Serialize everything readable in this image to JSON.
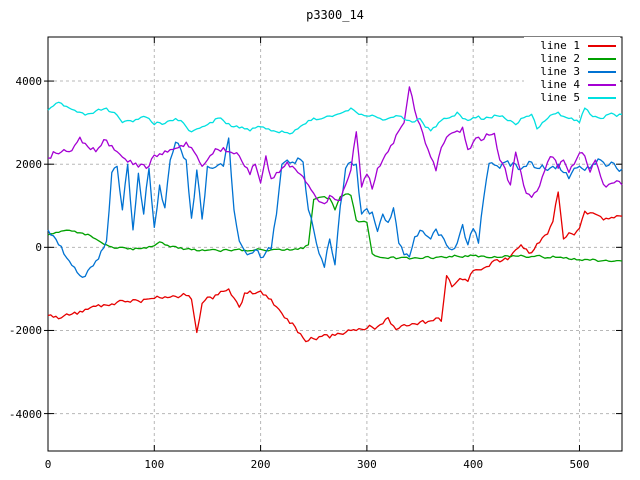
{
  "title": "p3300_14",
  "legend": {
    "items": [
      {
        "label": "line 1",
        "color": "#e60000"
      },
      {
        "label": "line 2",
        "color": "#00a000"
      },
      {
        "label": "line 3",
        "color": "#0072d2"
      },
      {
        "label": "line 4",
        "color": "#a400d3"
      },
      {
        "label": "line 5",
        "color": "#00e0e0"
      }
    ],
    "position": "top-right"
  },
  "axes": {
    "x_ticks": [
      0,
      100,
      200,
      300,
      400,
      500
    ],
    "x_tick_labels": [
      "0",
      "100",
      "200",
      "300",
      "400",
      "500"
    ],
    "y_ticks": [
      -4000,
      -2000,
      0,
      2000,
      4000
    ],
    "y_tick_labels": [
      "-4000",
      "-2000",
      "0",
      "2000",
      "4000"
    ],
    "grid_color": "#b8b8b8",
    "border_color": "#000000"
  },
  "chart_data": {
    "type": "line",
    "title": "p3300_14",
    "xlabel": "",
    "ylabel": "",
    "xlim": [
      0,
      540
    ],
    "ylim": [
      -4900,
      5060
    ],
    "grid": true,
    "legend_position": "top-right",
    "x_start": 0,
    "x_step": 5,
    "series": [
      {
        "name": "line 1",
        "color": "#e60000",
        "values": [
          -1640,
          -1680,
          -1720,
          -1650,
          -1630,
          -1560,
          -1540,
          -1490,
          -1450,
          -1420,
          -1430,
          -1390,
          -1360,
          -1320,
          -1280,
          -1300,
          -1260,
          -1290,
          -1250,
          -1240,
          -1230,
          -1210,
          -1190,
          -1200,
          -1180,
          -1170,
          -1160,
          -1250,
          -2050,
          -1350,
          -1200,
          -1240,
          -1140,
          -1060,
          -1000,
          -1220,
          -1440,
          -1100,
          -1050,
          -1110,
          -1050,
          -1150,
          -1250,
          -1430,
          -1590,
          -1720,
          -1820,
          -2050,
          -2180,
          -2250,
          -2200,
          -2150,
          -2100,
          -2180,
          -2120,
          -2080,
          -2050,
          -2000,
          -2000,
          -1970,
          -1950,
          -1920,
          -1910,
          -1840,
          -1690,
          -1890,
          -1950,
          -1860,
          -1880,
          -1840,
          -1800,
          -1830,
          -1770,
          -1700,
          -1780,
          -680,
          -950,
          -820,
          -780,
          -820,
          -560,
          -540,
          -500,
          -460,
          -310,
          -350,
          -260,
          -220,
          -60,
          60,
          -40,
          -130,
          90,
          230,
          320,
          620,
          1330,
          200,
          350,
          300,
          460,
          870,
          830,
          800,
          740,
          700,
          720,
          760,
          750
        ]
      },
      {
        "name": "line 2",
        "color": "#00a000",
        "values": [
          300,
          330,
          360,
          400,
          410,
          390,
          350,
          300,
          280,
          200,
          120,
          60,
          10,
          -20,
          0,
          -40,
          -60,
          -30,
          -10,
          20,
          40,
          130,
          60,
          10,
          20,
          -10,
          -40,
          -60,
          -80,
          -60,
          -70,
          -50,
          -80,
          -60,
          -70,
          -60,
          -40,
          -70,
          -80,
          -60,
          -50,
          -80,
          -60,
          -50,
          -70,
          -40,
          -60,
          -50,
          -30,
          60,
          1150,
          1200,
          1220,
          1180,
          900,
          1220,
          1280,
          1250,
          650,
          620,
          600,
          -150,
          -220,
          -250,
          -270,
          -230,
          -260,
          -240,
          -280,
          -250,
          -270,
          -230,
          -260,
          -240,
          -220,
          -250,
          -230,
          -210,
          -240,
          -220,
          -200,
          -230,
          -210,
          -250,
          -220,
          -240,
          -200,
          -230,
          -210,
          -190,
          -240,
          -220,
          -200,
          -230,
          -250,
          -210,
          -240,
          -260,
          -280,
          -270,
          -300,
          -290,
          -310,
          -300,
          -330,
          -310,
          -340,
          -320,
          -330
        ]
      },
      {
        "name": "line 3",
        "color": "#0072d2",
        "values": [
          420,
          280,
          60,
          -160,
          -330,
          -480,
          -680,
          -700,
          -480,
          -330,
          -90,
          150,
          1800,
          1950,
          900,
          2000,
          420,
          1780,
          800,
          1900,
          480,
          1500,
          950,
          2100,
          2530,
          2350,
          2100,
          700,
          1860,
          680,
          1950,
          1900,
          1980,
          1950,
          2630,
          900,
          150,
          -80,
          -150,
          -60,
          -250,
          -120,
          -40,
          800,
          2000,
          2100,
          2050,
          2150,
          2050,
          900,
          420,
          -150,
          -480,
          200,
          -420,
          1000,
          1900,
          2050,
          2000,
          800,
          930,
          850,
          380,
          800,
          600,
          950,
          100,
          -180,
          -230,
          250,
          410,
          300,
          200,
          440,
          300,
          50,
          -60,
          100,
          550,
          60,
          450,
          100,
          1200,
          2020,
          1980,
          1900,
          2050,
          1950,
          2000,
          1880,
          1950,
          2050,
          1900,
          1980,
          1850,
          1950,
          2000,
          1800,
          1650,
          1900,
          1950,
          1850,
          1900,
          2000,
          2100,
          1950,
          2050,
          1900,
          1880
        ]
      },
      {
        "name": "line 4",
        "color": "#a400d3",
        "values": [
          2150,
          2300,
          2250,
          2350,
          2300,
          2450,
          2650,
          2500,
          2350,
          2300,
          2450,
          2580,
          2450,
          2300,
          2170,
          2050,
          1990,
          1930,
          1990,
          1950,
          2220,
          2250,
          2320,
          2350,
          2380,
          2450,
          2530,
          2400,
          2200,
          1950,
          2100,
          2250,
          2350,
          2400,
          2300,
          2250,
          2200,
          1950,
          1750,
          2000,
          1550,
          2200,
          1650,
          1800,
          1900,
          2050,
          1950,
          1800,
          1700,
          1500,
          1300,
          1100,
          1050,
          1250,
          1150,
          1130,
          1500,
          1860,
          2780,
          1450,
          1760,
          1400,
          1900,
          2100,
          2300,
          2500,
          2800,
          3000,
          3860,
          3300,
          2950,
          2500,
          2170,
          1840,
          2400,
          2650,
          2750,
          2800,
          2890,
          2350,
          2530,
          2650,
          2600,
          2700,
          2740,
          2100,
          1900,
          1500,
          2290,
          1800,
          1300,
          1200,
          1350,
          1700,
          2050,
          2170,
          1900,
          2100,
          1800,
          2000,
          2270,
          2200,
          1810,
          2100,
          1700,
          1450,
          1540,
          1600,
          1500
        ]
      },
      {
        "name": "line 5",
        "color": "#00e0e0",
        "values": [
          3300,
          3400,
          3490,
          3400,
          3350,
          3300,
          3250,
          3180,
          3220,
          3280,
          3300,
          3350,
          3250,
          3180,
          3000,
          3050,
          3020,
          3080,
          3150,
          3100,
          2950,
          3000,
          2980,
          3050,
          3100,
          3050,
          2900,
          2780,
          2850,
          2900,
          2950,
          3000,
          3110,
          3050,
          2980,
          2900,
          2870,
          2850,
          2800,
          2870,
          2900,
          2850,
          2800,
          2780,
          2800,
          2760,
          2750,
          2850,
          2950,
          3050,
          3110,
          3080,
          3120,
          3160,
          3180,
          3220,
          3280,
          3350,
          3250,
          3200,
          3160,
          3180,
          3120,
          3060,
          3100,
          3130,
          3160,
          3080,
          3050,
          3020,
          3100,
          2890,
          2800,
          2900,
          3050,
          3100,
          3150,
          3250,
          3100,
          3050,
          3120,
          3160,
          3080,
          3120,
          3180,
          3150,
          3100,
          3050,
          2950,
          3100,
          3150,
          3200,
          2850,
          3000,
          3100,
          3200,
          3250,
          3150,
          3100,
          3050,
          3000,
          3350,
          3200,
          3150,
          3100,
          3180,
          3230,
          3150,
          3200
        ]
      }
    ]
  }
}
